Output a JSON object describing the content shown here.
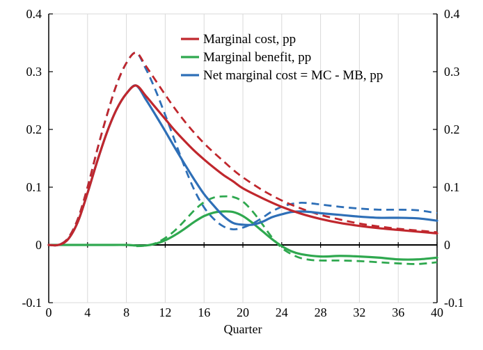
{
  "chart_data": {
    "type": "line",
    "title": "",
    "xlabel": "Quarter",
    "ylabel": "",
    "xlim": [
      0,
      40
    ],
    "ylim": [
      -0.1,
      0.4
    ],
    "x_ticks": [
      0,
      4,
      8,
      12,
      16,
      20,
      24,
      28,
      32,
      36,
      40
    ],
    "y_ticks": [
      -0.1,
      0,
      0.1,
      0.2,
      0.3,
      0.4
    ],
    "y_tick_labels": [
      "-0.1",
      "0",
      "0.1",
      "0.2",
      "0.3",
      "0.4"
    ],
    "secondary_y_tick_labels": [
      "-0.1",
      "0",
      "0.1",
      "0.2",
      "0.3",
      "0.4"
    ],
    "grid": "vertical",
    "legend_position": "top-right",
    "series": [
      {
        "name": "Marginal cost, pp",
        "style": "solid",
        "color": "#c0272d",
        "x": [
          0,
          1,
          2,
          3,
          4,
          5,
          6,
          7,
          8,
          9,
          10,
          11,
          12,
          13,
          14,
          15,
          16,
          17,
          18,
          19,
          20,
          22,
          24,
          26,
          28,
          30,
          32,
          34,
          36,
          38,
          40
        ],
        "y": [
          0,
          0,
          0.01,
          0.04,
          0.09,
          0.145,
          0.195,
          0.235,
          0.262,
          0.276,
          0.258,
          0.238,
          0.218,
          0.198,
          0.18,
          0.163,
          0.148,
          0.134,
          0.121,
          0.11,
          0.098,
          0.081,
          0.066,
          0.054,
          0.045,
          0.038,
          0.033,
          0.029,
          0.026,
          0.023,
          0.02
        ]
      },
      {
        "name": "Marginal cost (dashed)",
        "style": "dashed",
        "color": "#c0272d",
        "x": [
          0,
          1,
          2,
          3,
          4,
          5,
          6,
          7,
          8,
          9,
          10,
          11,
          12,
          13,
          14,
          15,
          16,
          17,
          18,
          19,
          20,
          22,
          24,
          26,
          28,
          30,
          32,
          34,
          36,
          38,
          40
        ],
        "y": [
          0,
          0,
          0.012,
          0.045,
          0.1,
          0.165,
          0.225,
          0.278,
          0.315,
          0.333,
          0.31,
          0.285,
          0.26,
          0.236,
          0.214,
          0.194,
          0.176,
          0.16,
          0.145,
          0.13,
          0.117,
          0.095,
          0.077,
          0.063,
          0.052,
          0.044,
          0.037,
          0.032,
          0.028,
          0.025,
          0.022
        ]
      },
      {
        "name": "Marginal benefit, pp",
        "style": "solid",
        "color": "#2fa84f",
        "x": [
          0,
          2,
          4,
          6,
          8,
          9,
          10,
          11,
          12,
          13,
          14,
          15,
          16,
          17,
          18,
          19,
          20,
          21,
          22,
          23,
          24,
          25,
          26,
          28,
          30,
          32,
          34,
          36,
          38,
          40
        ],
        "y": [
          0,
          0,
          0,
          0,
          0,
          -0.001,
          -0.001,
          0.002,
          0.008,
          0.017,
          0.028,
          0.04,
          0.05,
          0.056,
          0.058,
          0.057,
          0.05,
          0.038,
          0.024,
          0.01,
          -0.002,
          -0.011,
          -0.016,
          -0.02,
          -0.019,
          -0.02,
          -0.022,
          -0.025,
          -0.025,
          -0.022
        ]
      },
      {
        "name": "Marginal benefit (dashed)",
        "style": "dashed",
        "color": "#2fa84f",
        "x": [
          0,
          2,
          4,
          6,
          8,
          9,
          10,
          11,
          12,
          13,
          14,
          15,
          16,
          17,
          18,
          19,
          20,
          21,
          22,
          23,
          24,
          25,
          26,
          27,
          28,
          30,
          32,
          34,
          36,
          38,
          40
        ],
        "y": [
          0,
          0,
          0,
          0,
          0,
          -0.002,
          -0.001,
          0.003,
          0.012,
          0.025,
          0.042,
          0.06,
          0.074,
          0.082,
          0.084,
          0.083,
          0.075,
          0.058,
          0.036,
          0.013,
          -0.005,
          -0.016,
          -0.023,
          -0.026,
          -0.027,
          -0.027,
          -0.028,
          -0.03,
          -0.032,
          -0.033,
          -0.03
        ]
      },
      {
        "name": "Net marginal cost = MC - MB, pp",
        "style": "solid",
        "color": "#2e6fb7",
        "x": [
          0,
          1,
          2,
          3,
          4,
          5,
          6,
          7,
          8,
          9,
          10,
          11,
          12,
          13,
          14,
          15,
          16,
          17,
          18,
          19,
          20,
          21,
          22,
          23,
          24,
          25,
          26,
          27,
          28,
          30,
          32,
          34,
          36,
          38,
          40
        ],
        "y": [
          0,
          0,
          0.01,
          0.04,
          0.09,
          0.145,
          0.195,
          0.235,
          0.262,
          0.276,
          0.252,
          0.225,
          0.197,
          0.168,
          0.14,
          0.113,
          0.088,
          0.068,
          0.05,
          0.038,
          0.035,
          0.035,
          0.04,
          0.048,
          0.053,
          0.057,
          0.058,
          0.057,
          0.055,
          0.052,
          0.049,
          0.047,
          0.047,
          0.046,
          0.042
        ]
      },
      {
        "name": "Net marginal cost (dashed)",
        "style": "dashed",
        "color": "#2e6fb7",
        "x": [
          0,
          1,
          2,
          3,
          4,
          5,
          6,
          7,
          8,
          9,
          10,
          11,
          12,
          13,
          14,
          15,
          16,
          17,
          18,
          19,
          20,
          21,
          22,
          23,
          24,
          25,
          26,
          27,
          28,
          30,
          32,
          34,
          36,
          38,
          40
        ],
        "y": [
          0,
          0,
          0.012,
          0.045,
          0.1,
          0.165,
          0.225,
          0.278,
          0.315,
          0.333,
          0.305,
          0.268,
          0.225,
          0.18,
          0.135,
          0.095,
          0.065,
          0.045,
          0.032,
          0.027,
          0.03,
          0.037,
          0.047,
          0.058,
          0.066,
          0.071,
          0.073,
          0.072,
          0.07,
          0.066,
          0.063,
          0.061,
          0.061,
          0.06,
          0.055
        ]
      }
    ]
  }
}
